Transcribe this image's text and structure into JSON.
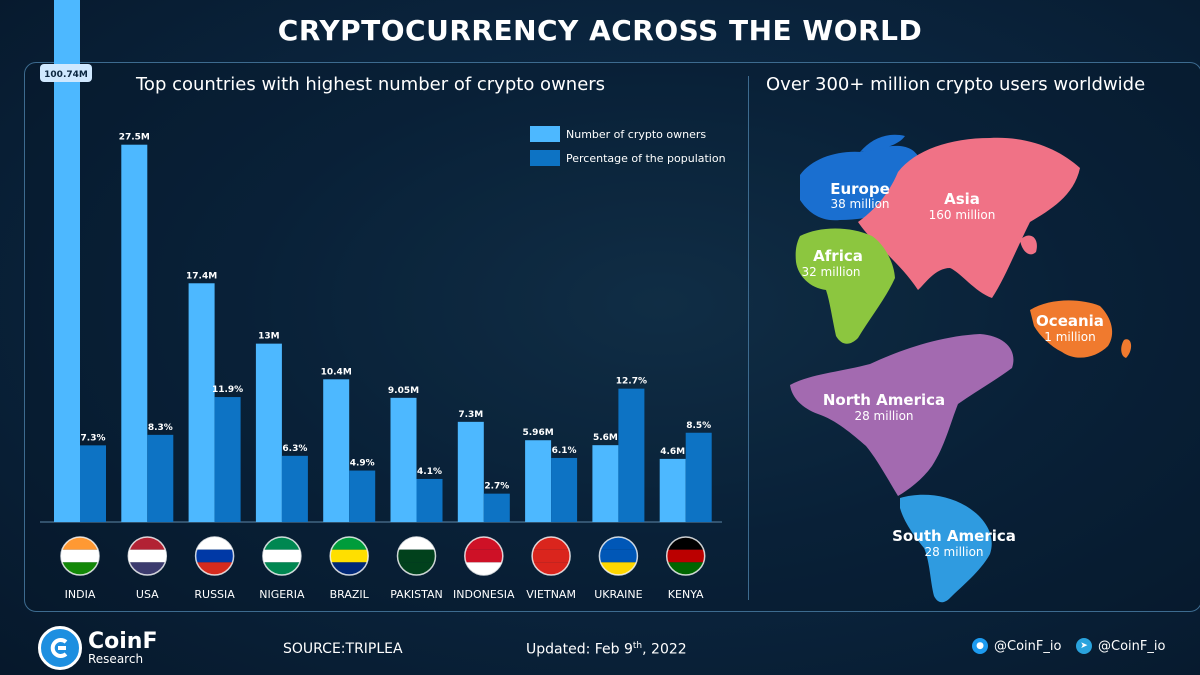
{
  "title": "CRYPTOCURRENCY ACROSS THE WORLD",
  "left_subtitle": "Top countries with highest number of crypto owners",
  "right_subtitle": "Over 300+ million crypto users worldwide",
  "colors": {
    "owners": "#4db8ff",
    "percentage": "#0d73c4",
    "europe": "#1a6fd0",
    "asia": "#f07286",
    "africa": "#8cc63f",
    "oceania": "#f07a2e",
    "north_america": "#a36ab0",
    "south_america": "#2f9be0"
  },
  "chart_data": {
    "type": "bar",
    "categories": [
      "INDIA",
      "USA",
      "RUSSIA",
      "NIGERIA",
      "BRAZIL",
      "PAKISTAN",
      "INDONESIA",
      "VIETNAM",
      "UKRAINE",
      "KENYA"
    ],
    "series": [
      {
        "name": "Number of crypto owners",
        "values": [
          100.74,
          27.5,
          17.4,
          13,
          10.4,
          9.05,
          7.3,
          5.96,
          5.6,
          4.6
        ],
        "labels": [
          "100.74M",
          "27.5M",
          "17.4M",
          "13M",
          "10.4M",
          "9.05M",
          "7.3M",
          "5.96M",
          "5.6M",
          "4.6M"
        ]
      },
      {
        "name": "Percentage of the population",
        "values": [
          7.3,
          8.3,
          11.9,
          6.3,
          4.9,
          4.1,
          2.7,
          6.1,
          12.7,
          8.5
        ],
        "labels": [
          "7.3%",
          "8.3%",
          "11.9%",
          "6.3%",
          "4.9%",
          "4.1%",
          "2.7%",
          "6.1%",
          "12.7%",
          "8.5%"
        ]
      }
    ],
    "legend": "top-right",
    "grid": false
  },
  "regions": [
    {
      "name": "Europe",
      "value": "38 million"
    },
    {
      "name": "Asia",
      "value": "160 million"
    },
    {
      "name": "Africa",
      "value": "32 million"
    },
    {
      "name": "Oceania",
      "value": "1 million"
    },
    {
      "name": "North America",
      "value": "28 million"
    },
    {
      "name": "South America",
      "value": "28 million"
    }
  ],
  "flags": [
    "india-flag-icon",
    "usa-flag-icon",
    "russia-flag-icon",
    "nigeria-flag-icon",
    "brazil-flag-icon",
    "pakistan-flag-icon",
    "indonesia-flag-icon",
    "vietnam-flag-icon",
    "ukraine-flag-icon",
    "kenya-flag-icon"
  ],
  "footer": {
    "logo_name": "CoinF",
    "logo_sub": "Research",
    "source": "SOURCE:TRIPLEA",
    "updated_prefix": "Updated: Feb 9",
    "updated_sup": "th",
    "updated_suffix": ", 2022",
    "twitter": "@CoinF_io",
    "telegram": "@CoinF_io"
  }
}
